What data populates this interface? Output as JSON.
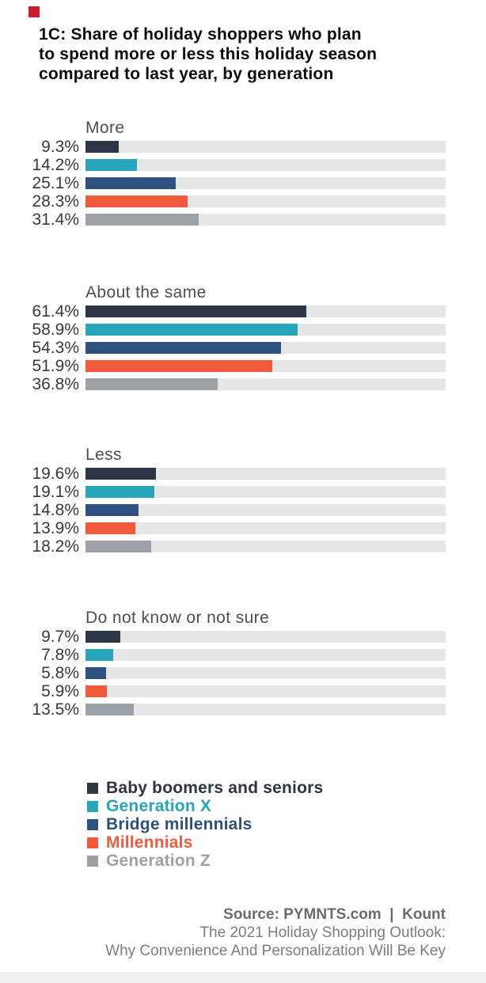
{
  "brand": {
    "mark_color": "#c51f30"
  },
  "header": {
    "title_lines": [
      "1C: Share of holiday shoppers who plan",
      "to spend more or less this holiday season",
      "compared to last year, by generation"
    ]
  },
  "chart_data": {
    "type": "bar",
    "orientation": "horizontal",
    "title": "1C: Share of holiday shoppers who plan to spend more or less this holiday season compared to last year, by generation",
    "value_unit": "%",
    "xlim": [
      0,
      100
    ],
    "grid": false,
    "legend_position": "bottom-left",
    "series": [
      "Baby boomers and seniors",
      "Generation X",
      "Bridge millennials",
      "Millennials",
      "Generation Z"
    ],
    "colors": [
      "#2d3645",
      "#27a5b9",
      "#2f5181",
      "#f15b3c",
      "#9ca1a8"
    ],
    "track_color": "#e6e6e6",
    "groups": [
      {
        "label": "More",
        "values": [
          9.3,
          14.2,
          25.1,
          28.3,
          31.4
        ]
      },
      {
        "label": "About the same",
        "values": [
          61.4,
          58.9,
          54.3,
          51.9,
          36.8
        ]
      },
      {
        "label": "Less",
        "values": [
          19.6,
          19.1,
          14.8,
          13.9,
          18.2
        ]
      },
      {
        "label": "Do not know or not sure",
        "values": [
          9.7,
          7.8,
          5.8,
          5.9,
          13.5
        ]
      }
    ]
  },
  "legend": {
    "items": [
      {
        "label": "Baby boomers and seniors",
        "color": "#2d3645"
      },
      {
        "label": "Generation X",
        "color": "#27a5b9"
      },
      {
        "label": "Bridge millennials",
        "color": "#2f5181"
      },
      {
        "label": "Millennials",
        "color": "#f15b3c"
      },
      {
        "label": "Generation Z",
        "color": "#9ca1a8"
      }
    ]
  },
  "footer": {
    "source_line": "Source: PYMNTS.com  |  Kount",
    "report_line_1": "The 2021 Holiday Shopping Outlook:",
    "report_line_2": "Why Convenience And Personalization Will Be Key"
  }
}
